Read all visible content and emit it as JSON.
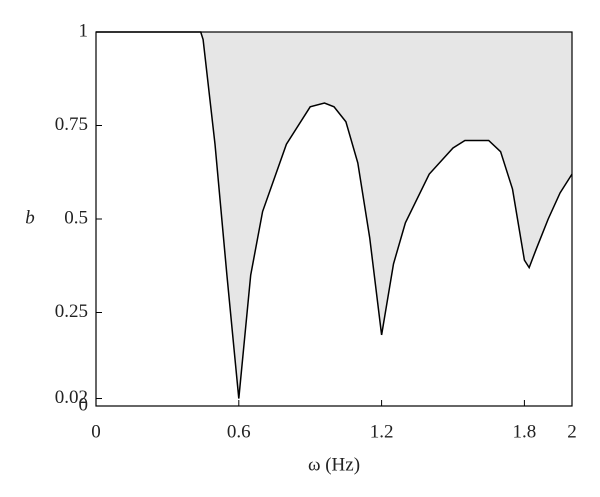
{
  "chart_data": {
    "type": "area",
    "xlabel": "ω (Hz)",
    "ylabel": "b",
    "x": [
      0,
      0.44,
      0.45,
      0.5,
      0.55,
      0.6,
      0.65,
      0.7,
      0.8,
      0.9,
      0.96,
      1.0,
      1.05,
      1.1,
      1.15,
      1.2,
      1.25,
      1.3,
      1.4,
      1.5,
      1.55,
      1.65,
      1.7,
      1.75,
      1.8,
      1.82,
      1.85,
      1.9,
      1.95,
      2.0
    ],
    "values": [
      1,
      1,
      0.98,
      0.7,
      0.35,
      0.02,
      0.35,
      0.52,
      0.7,
      0.8,
      0.81,
      0.8,
      0.76,
      0.65,
      0.45,
      0.19,
      0.38,
      0.49,
      0.62,
      0.69,
      0.71,
      0.71,
      0.68,
      0.58,
      0.39,
      0.37,
      0.42,
      0.5,
      0.57,
      0.62
    ],
    "color": "#e6e6e6",
    "line_color": "#000000",
    "xlim": [
      0,
      2
    ],
    "ylim": [
      0,
      1
    ],
    "xticks": [
      0,
      0.6,
      1.2,
      1.8,
      2
    ],
    "yticks": [
      0,
      0.02,
      0.25,
      0.5,
      0.75,
      1
    ],
    "grid": false
  }
}
